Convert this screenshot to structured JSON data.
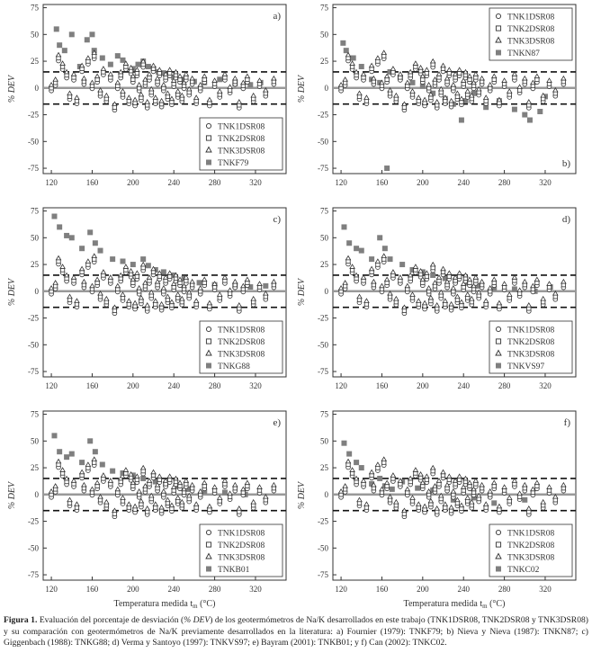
{
  "figure": {
    "caption_label": "Figura 1.",
    "caption_text_a": "Evaluación del porcentaje de desviación (",
    "caption_dev": "% DEV",
    "caption_text_b": ") de los geotermómetros de Na/K desarrollados en este trabajo (TNK1DSR08, TNK2DSR08 y TNK3DSR08) y su comparación con geotermómetros de Na/K previamente desarrollados en la literatura: a) Fournier (1979): TNKF79; b) Nieva y Nieva (1987): TNKN87; c) Giggenbach (1988): TNKG88; d) Verma y Santoyo (1997): TNKVS97; e) Bayram (2001): TNKB01; y f) Can (2002): TNKC02."
  },
  "colors": {
    "axis": "#333333",
    "comparison_marker": "#7f7f7f",
    "reference_dashed": "#111111",
    "zero_line": "#999999"
  },
  "chart_data": [
    {
      "panel": "a",
      "type": "scatter",
      "ylabel": "% DEV",
      "xlabel": "",
      "xlim": [
        112,
        350
      ],
      "ylim": [
        -80,
        78
      ],
      "xticks": [
        120,
        160,
        200,
        240,
        280,
        320
      ],
      "yticks": [
        75,
        50,
        25,
        0,
        -25,
        -50,
        -75
      ],
      "reference_lines": [
        15,
        -15
      ],
      "legend_position": "bottom-right",
      "legend": [
        "TNK1DSR08",
        "TNK2DSR08",
        "TNK3DSR08",
        "TNKF79"
      ],
      "comparison_series": {
        "name": "TNKF79",
        "x": [
          125,
          128,
          133,
          140,
          148,
          155,
          160,
          162,
          170,
          178,
          185,
          190,
          200,
          205,
          210,
          215,
          220,
          225,
          230,
          235,
          240,
          250,
          260,
          270,
          285,
          300,
          315,
          325
        ],
        "y": [
          55,
          40,
          35,
          50,
          20,
          45,
          50,
          35,
          28,
          22,
          30,
          26,
          18,
          22,
          25,
          20,
          18,
          15,
          14,
          12,
          10,
          8,
          6,
          5,
          8,
          4,
          3,
          5
        ]
      }
    },
    {
      "panel": "b",
      "type": "scatter",
      "ylabel": "% DEV",
      "xlabel": "",
      "xlim": [
        112,
        350
      ],
      "ylim": [
        -80,
        78
      ],
      "xticks": [
        120,
        160,
        200,
        240,
        280,
        320
      ],
      "yticks": [
        75,
        50,
        25,
        0,
        -25,
        -50,
        -75
      ],
      "reference_lines": [
        15,
        -15
      ],
      "legend_position": "top-right",
      "legend": [
        "TNK1DSR08",
        "TNK2DSR08",
        "TNK3DSR08",
        "TNKN87"
      ],
      "comparison_series": {
        "name": "TNKN87",
        "x": [
          122,
          125,
          132,
          140,
          150,
          158,
          165,
          168,
          178,
          190,
          200,
          210,
          222,
          230,
          238,
          242,
          250,
          262,
          275,
          290,
          300,
          305,
          315,
          320
        ],
        "y": [
          42,
          35,
          28,
          20,
          8,
          5,
          -75,
          15,
          10,
          5,
          2,
          -5,
          -10,
          -15,
          -30,
          -12,
          -5,
          -18,
          -12,
          -20,
          -25,
          -30,
          -22,
          -8
        ]
      }
    },
    {
      "panel": "c",
      "type": "scatter",
      "ylabel": "% DEV",
      "xlabel": "",
      "xlim": [
        112,
        350
      ],
      "ylim": [
        -80,
        78
      ],
      "xticks": [
        120,
        160,
        200,
        240,
        280,
        320
      ],
      "yticks": [
        75,
        50,
        25,
        0,
        -25,
        -50,
        -75
      ],
      "reference_lines": [
        15,
        -15
      ],
      "legend_position": "bottom-right",
      "legend": [
        "TNK1DSR08",
        "TNK2DSR08",
        "TNK3DSR08",
        "TNKG88"
      ],
      "comparison_series": {
        "name": "TNKG88",
        "x": [
          123,
          128,
          135,
          140,
          150,
          158,
          163,
          168,
          180,
          190,
          200,
          210,
          215,
          222,
          230,
          240,
          250,
          265,
          280,
          300,
          315,
          330
        ],
        "y": [
          70,
          60,
          52,
          50,
          40,
          55,
          45,
          38,
          30,
          28,
          25,
          30,
          24,
          20,
          18,
          15,
          12,
          8,
          6,
          5,
          4,
          5
        ]
      }
    },
    {
      "panel": "d",
      "type": "scatter",
      "ylabel": "% DEV",
      "xlabel": "",
      "xlim": [
        112,
        350
      ],
      "ylim": [
        -80,
        78
      ],
      "xticks": [
        120,
        160,
        200,
        240,
        280,
        320
      ],
      "yticks": [
        75,
        50,
        25,
        0,
        -25,
        -50,
        -75
      ],
      "reference_lines": [
        15,
        -15
      ],
      "legend_position": "bottom-right",
      "legend": [
        "TNK1DSR08",
        "TNK2DSR08",
        "TNK3DSR08",
        "TNKVS97"
      ],
      "comparison_series": {
        "name": "TNKVS97",
        "x": [
          123,
          128,
          135,
          140,
          150,
          158,
          163,
          168,
          180,
          190,
          200,
          210,
          222,
          232,
          242,
          255,
          270,
          290,
          310,
          325
        ],
        "y": [
          60,
          45,
          40,
          38,
          30,
          50,
          40,
          30,
          25,
          20,
          18,
          15,
          12,
          10,
          8,
          5,
          3,
          2,
          0,
          4
        ]
      }
    },
    {
      "panel": "e",
      "type": "scatter",
      "ylabel": "% DEV",
      "xlabel": "Temperatura medida t",
      "xlabel_subscript": "m",
      "xlabel_unit": "(°C)",
      "xlim": [
        112,
        350
      ],
      "ylim": [
        -80,
        78
      ],
      "xticks": [
        120,
        160,
        200,
        240,
        280,
        320
      ],
      "yticks": [
        75,
        50,
        25,
        0,
        -25,
        -50,
        -75
      ],
      "reference_lines": [
        15,
        -15
      ],
      "legend_position": "bottom-right",
      "legend": [
        "TNK1DSR08",
        "TNK2DSR08",
        "TNK3DSR08",
        "TNKB01"
      ],
      "comparison_series": {
        "name": "TNKB01",
        "x": [
          123,
          128,
          135,
          140,
          150,
          158,
          163,
          170,
          180,
          190,
          200,
          210,
          222,
          232,
          242,
          255,
          270,
          290,
          310
        ],
        "y": [
          55,
          40,
          35,
          38,
          30,
          50,
          40,
          28,
          22,
          20,
          18,
          15,
          12,
          10,
          8,
          5,
          3,
          2,
          0
        ]
      }
    },
    {
      "panel": "f",
      "type": "scatter",
      "ylabel": "% DEV",
      "xlabel": "Temperatura medida t",
      "xlabel_subscript": "m",
      "xlabel_unit": "(°C)",
      "xlim": [
        112,
        350
      ],
      "ylim": [
        -80,
        78
      ],
      "xticks": [
        120,
        160,
        200,
        240,
        280,
        320
      ],
      "yticks": [
        75,
        50,
        25,
        0,
        -25,
        -50,
        -75
      ],
      "reference_lines": [
        15,
        -15
      ],
      "legend_position": "bottom-right",
      "legend": [
        "TNK1DSR08",
        "TNK2DSR08",
        "TNK3DSR08",
        "TNKC02"
      ],
      "comparison_series": {
        "name": "TNKC02",
        "x": [
          123,
          128,
          135,
          140,
          150,
          158,
          163,
          170,
          180,
          195,
          210,
          230,
          250,
          270,
          300
        ],
        "y": [
          48,
          38,
          30,
          25,
          10,
          15,
          8,
          5,
          12,
          6,
          4,
          -5,
          -3,
          -8,
          -5
        ]
      }
    }
  ],
  "own_series_points": {
    "x": [
      120,
      124,
      127,
      131,
      135,
      138,
      142,
      145,
      150,
      152,
      156,
      160,
      162,
      165,
      168,
      171,
      174,
      178,
      182,
      185,
      188,
      190,
      193,
      196,
      198,
      200,
      202,
      204,
      206,
      208,
      210,
      212,
      214,
      216,
      218,
      220,
      222,
      224,
      226,
      228,
      230,
      232,
      234,
      236,
      238,
      240,
      242,
      244,
      246,
      248,
      250,
      252,
      255,
      258,
      262,
      266,
      270,
      275,
      280,
      285,
      290,
      295,
      300,
      304,
      308,
      312,
      318,
      324,
      330,
      338
    ],
    "y": [
      0,
      5,
      28,
      20,
      12,
      -8,
      10,
      -12,
      18,
      6,
      25,
      2,
      30,
      8,
      -5,
      15,
      -10,
      10,
      -18,
      2,
      12,
      -6,
      20,
      -12,
      16,
      8,
      -14,
      14,
      0,
      -9,
      22,
      5,
      -16,
      10,
      -4,
      18,
      -12,
      6,
      14,
      -15,
      0,
      10,
      -8,
      14,
      -13,
      4,
      12,
      -6,
      8,
      -10,
      2,
      10,
      -4,
      6,
      -12,
      0,
      8,
      -14,
      4,
      -6,
      10,
      -2,
      6,
      -16,
      2,
      8,
      -10,
      4,
      -5,
      6
    ]
  }
}
